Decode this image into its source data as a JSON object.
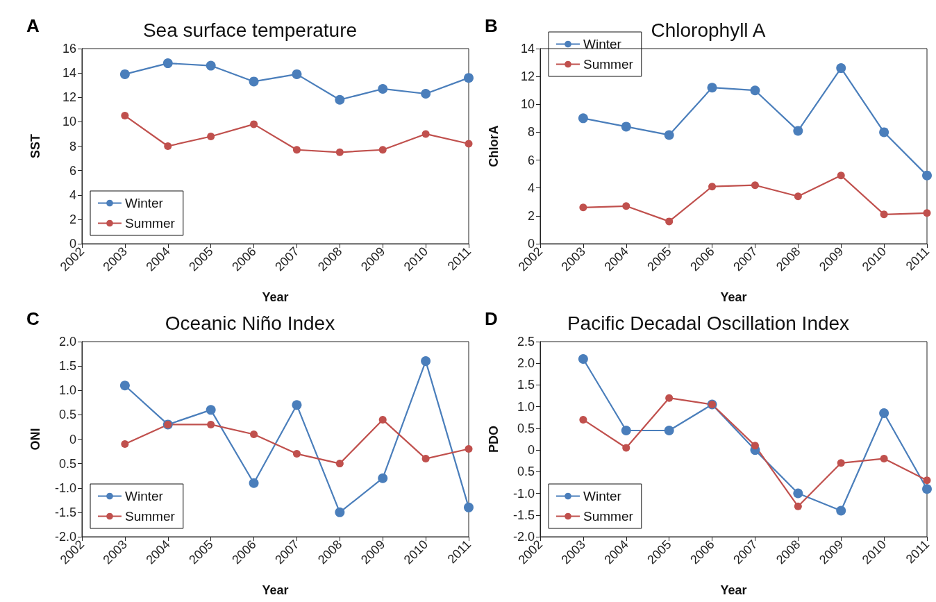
{
  "chart_data": [
    {
      "type": "line",
      "title": "Sea surface temperature",
      "xlabel": "Year",
      "ylabel": "SST",
      "annotations": [
        "A"
      ],
      "x": [
        2003,
        2004,
        2005,
        2006,
        2007,
        2008,
        2009,
        2010,
        2011
      ],
      "xlim": [
        2002,
        2011
      ],
      "xticks": [
        2002,
        2003,
        2004,
        2005,
        2006,
        2007,
        2008,
        2009,
        2010,
        2011
      ],
      "ylim": [
        0,
        16
      ],
      "yticks": [
        0,
        2,
        4,
        6,
        8,
        10,
        12,
        14,
        16
      ],
      "series": [
        {
          "name": "Winter",
          "color": "#4a7ebb",
          "values": [
            13.9,
            14.8,
            14.6,
            13.3,
            13.9,
            11.8,
            12.7,
            12.3,
            13.6
          ]
        },
        {
          "name": "Summer",
          "color": "#c0504d",
          "values": [
            10.5,
            8.0,
            8.8,
            9.8,
            7.7,
            7.5,
            7.7,
            9.0,
            8.2
          ]
        }
      ],
      "grid": false,
      "legend": "bottom left",
      "marker": "circle",
      "line_style": "solid"
    },
    {
      "type": "line",
      "title": "Chlorophyll A",
      "xlabel": "Year",
      "ylabel": "ChlorA",
      "annotations": [
        "B"
      ],
      "x": [
        2003,
        2004,
        2005,
        2006,
        2007,
        2008,
        2009,
        2010,
        2011
      ],
      "xlim": [
        2002,
        2011
      ],
      "xticks": [
        2002,
        2003,
        2004,
        2005,
        2006,
        2007,
        2008,
        2009,
        2010,
        2011
      ],
      "ylim": [
        0,
        14
      ],
      "yticks": [
        0,
        2,
        4,
        6,
        8,
        10,
        12,
        14
      ],
      "series": [
        {
          "name": "Winter",
          "color": "#4a7ebb",
          "values": [
            9.0,
            8.4,
            7.8,
            11.2,
            11.0,
            8.1,
            12.6,
            8.0,
            4.9
          ]
        },
        {
          "name": "Summer",
          "color": "#c0504d",
          "values": [
            2.6,
            2.7,
            1.6,
            4.1,
            4.2,
            3.4,
            4.9,
            2.1,
            2.2
          ]
        }
      ],
      "grid": false,
      "legend": "top left",
      "marker": "circle",
      "line_style": "solid"
    },
    {
      "type": "line",
      "title": "Oceanic Niño Index",
      "xlabel": "Year",
      "ylabel": "ONI",
      "annotations": [
        "C"
      ],
      "x": [
        2003,
        2004,
        2005,
        2006,
        2007,
        2008,
        2009,
        2010,
        2011
      ],
      "xlim": [
        2002,
        2011
      ],
      "xticks": [
        2002,
        2003,
        2004,
        2005,
        2006,
        2007,
        2008,
        2009,
        2010,
        2011
      ],
      "ylim": [
        -2,
        2
      ],
      "yticks": [
        {
          "value": -2,
          "label": "-2.0"
        },
        {
          "value": -1.5,
          "label": "-1.5"
        },
        {
          "value": -1,
          "label": "-1.0"
        },
        {
          "value": -0.5,
          "label": "0.5"
        },
        0,
        0.5,
        {
          "value": 1,
          "label": "1.0"
        },
        1.5,
        {
          "value": 2,
          "label": "2.0"
        }
      ],
      "series": [
        {
          "name": "Winter",
          "color": "#4a7ebb",
          "values": [
            1.1,
            0.3,
            0.6,
            -0.9,
            0.7,
            -1.5,
            -0.8,
            1.6,
            -1.4
          ]
        },
        {
          "name": "Summer",
          "color": "#c0504d",
          "values": [
            -0.1,
            0.3,
            0.3,
            0.1,
            -0.3,
            -0.5,
            0.4,
            -0.4,
            -0.2
          ]
        }
      ],
      "grid": false,
      "legend": "bottom left",
      "marker": "circle",
      "line_style": "solid"
    },
    {
      "type": "line",
      "title": "Pacific Decadal Oscillation Index",
      "xlabel": "Year",
      "ylabel": "PDO",
      "annotations": [
        "D"
      ],
      "x": [
        2003,
        2004,
        2005,
        2006,
        2007,
        2008,
        2009,
        2010,
        2011
      ],
      "xlim": [
        2002,
        2011
      ],
      "xticks": [
        2002,
        2003,
        2004,
        2005,
        2006,
        2007,
        2008,
        2009,
        2010,
        2011
      ],
      "ylim": [
        -2,
        2.5
      ],
      "yticks": [
        {
          "value": -2,
          "label": "-2.0"
        },
        {
          "value": -1.5,
          "label": "-1.5"
        },
        {
          "value": -1,
          "label": "-1.0"
        },
        {
          "value": -0.5,
          "label": "0.5"
        },
        0,
        0.5,
        {
          "value": 1,
          "label": "1.0"
        },
        1.5,
        {
          "value": 2,
          "label": "2.0"
        },
        2.5
      ],
      "series": [
        {
          "name": "Winter",
          "color": "#4a7ebb",
          "values": [
            2.1,
            0.45,
            0.45,
            1.05,
            0.0,
            -1.0,
            -1.4,
            0.85,
            -0.9
          ]
        },
        {
          "name": "Summer",
          "color": "#c0504d",
          "values": [
            0.7,
            0.05,
            1.2,
            1.05,
            0.1,
            -1.3,
            -0.3,
            -0.2,
            -0.7
          ]
        }
      ],
      "grid": false,
      "legend": "bottom left",
      "marker": "circle",
      "line_style": "solid"
    }
  ]
}
